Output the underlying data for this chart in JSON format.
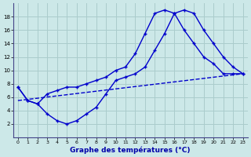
{
  "xlabel": "Graphe des températures (°C)",
  "bg_color": "#cce8e8",
  "grid_color": "#aacccc",
  "line_color": "#0000cc",
  "ylim": [
    0,
    20
  ],
  "xlim": [
    -0.5,
    23.5
  ],
  "ytick_vals": [
    2,
    4,
    6,
    8,
    10,
    12,
    14,
    16,
    18
  ],
  "xtick_vals": [
    0,
    1,
    2,
    3,
    4,
    5,
    6,
    7,
    8,
    9,
    10,
    11,
    12,
    13,
    14,
    15,
    16,
    17,
    18,
    19,
    20,
    21,
    22,
    23
  ],
  "curve1_x": [
    0,
    1,
    2,
    3,
    4,
    5,
    6,
    7,
    8,
    9,
    10,
    11,
    12,
    13,
    14,
    15,
    16,
    17,
    18,
    19,
    20,
    21,
    22,
    23
  ],
  "curve1_y": [
    7.5,
    5.5,
    5.0,
    6.5,
    7.0,
    7.5,
    7.5,
    8.0,
    8.5,
    9.0,
    10.0,
    10.5,
    12.5,
    15.5,
    18.5,
    19.0,
    18.5,
    16.0,
    14.0,
    12.0,
    11.0,
    9.5,
    9.5,
    9.5
  ],
  "curve2_x": [
    0,
    1,
    2,
    3,
    4,
    5,
    6,
    7,
    8,
    9,
    10,
    11,
    12,
    13,
    14,
    15,
    16,
    17,
    18,
    19,
    20,
    21,
    22,
    23
  ],
  "curve2_y": [
    7.5,
    5.5,
    5.0,
    3.5,
    2.5,
    2.0,
    2.5,
    3.5,
    4.5,
    6.5,
    8.5,
    9.0,
    9.5,
    10.5,
    13.0,
    15.5,
    18.5,
    19.0,
    18.5,
    16.0,
    14.0,
    12.0,
    10.5,
    9.5
  ],
  "line_x": [
    0,
    23
  ],
  "line_y": [
    5.5,
    9.5
  ]
}
